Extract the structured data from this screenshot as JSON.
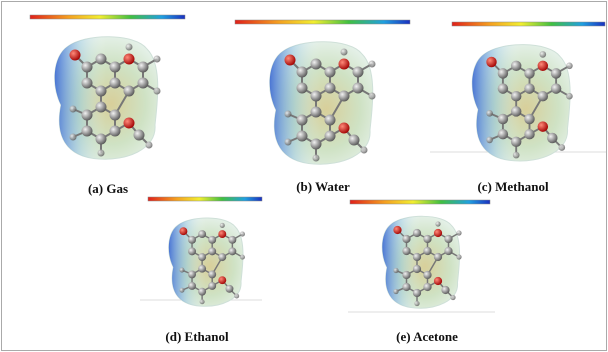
{
  "panels": [
    {
      "label": "(a) Gas"
    },
    {
      "label": "(b) Water"
    },
    {
      "label": "(c) Methanol"
    },
    {
      "label": "(d) Ethanol"
    },
    {
      "label": "(e) Acetone"
    }
  ]
}
